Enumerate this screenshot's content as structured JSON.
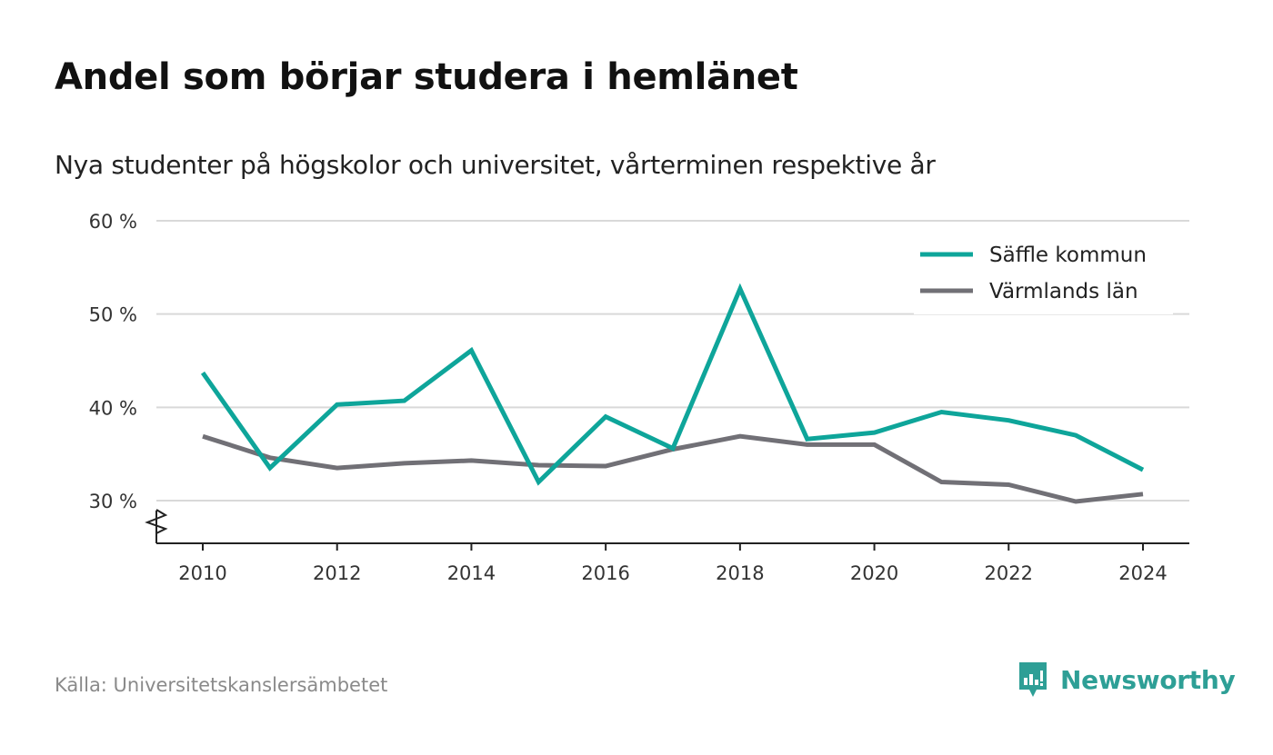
{
  "chart_data": {
    "type": "line",
    "title": "Andel som börjar studera i hemlänet",
    "subtitle": "Nya studenter på högskolor och universitet, vårterminen respektive år",
    "x": [
      2010,
      2011,
      2012,
      2013,
      2014,
      2015,
      2016,
      2017,
      2018,
      2019,
      2020,
      2021,
      2022,
      2023,
      2024
    ],
    "x_ticks": [
      "2010",
      "2012",
      "2014",
      "2016",
      "2018",
      "2020",
      "2022",
      "2024"
    ],
    "y_ticks": [
      "30 %",
      "40 %",
      "50 %",
      "60 %"
    ],
    "ylim": [
      25.5,
      60
    ],
    "y_axis_break": true,
    "grid": true,
    "legend_position": "top-right",
    "series": [
      {
        "name": "Säffle kommun",
        "color": "#0ea59a",
        "values": [
          43.7,
          33.5,
          40.3,
          40.7,
          46.1,
          32.0,
          39.0,
          35.6,
          52.7,
          36.6,
          37.3,
          39.5,
          38.6,
          37.0,
          33.3
        ]
      },
      {
        "name": "Värmlands län",
        "color": "#717076",
        "values": [
          36.9,
          34.6,
          33.5,
          34.0,
          34.3,
          33.8,
          33.7,
          35.5,
          36.9,
          36.0,
          36.0,
          32.0,
          31.7,
          29.9,
          30.7
        ]
      }
    ]
  },
  "source": "Källa: Universitetskanslersämbetet",
  "brand": {
    "name": "Newsworthy",
    "color": "#2e9f96",
    "icon": "newsworthy-logo-icon"
  }
}
